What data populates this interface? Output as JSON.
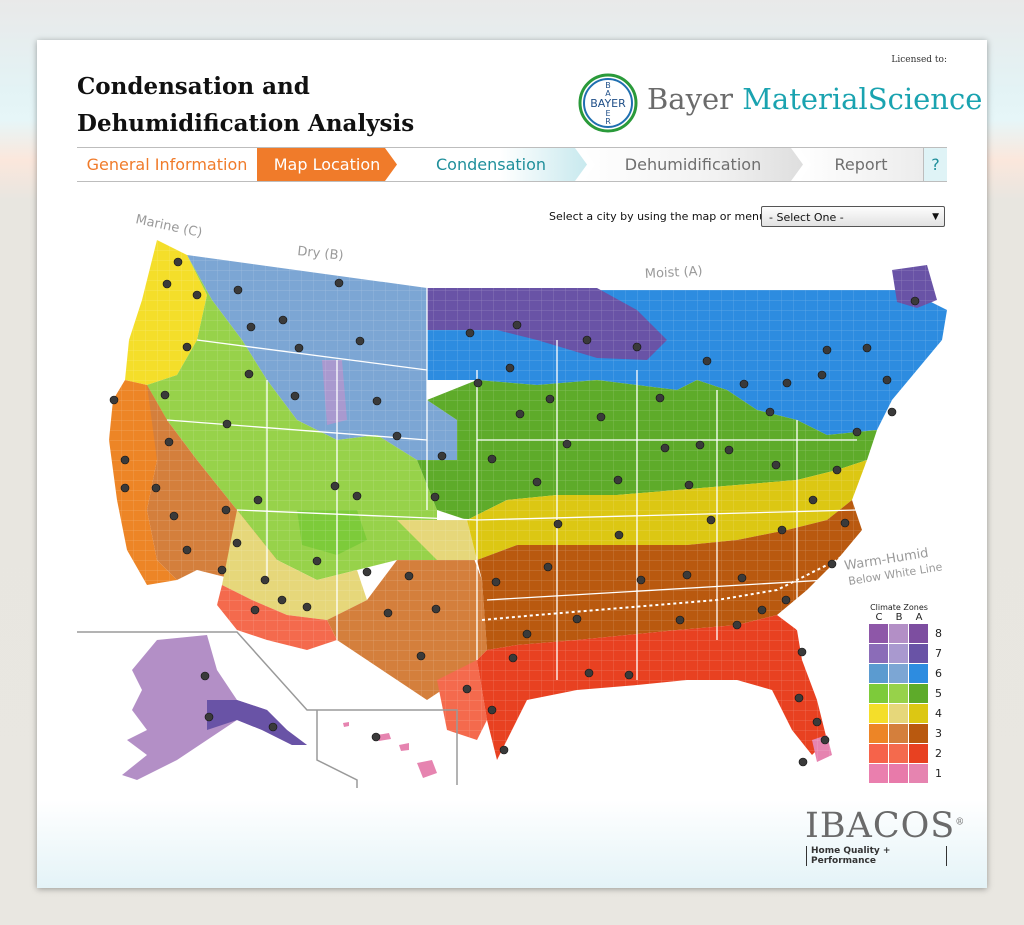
{
  "header": {
    "title": "Condensation and Dehumidification Analysis",
    "licensed_label": "Licensed to:",
    "brand_word1": "Bayer",
    "brand_word2": "MaterialScience",
    "cross_letters": "BAYER"
  },
  "tabs": [
    {
      "label": "General Information",
      "state": "visited"
    },
    {
      "label": "Map Location",
      "state": "active"
    },
    {
      "label": "Condensation",
      "state": "upcoming"
    },
    {
      "label": "Dehumidification",
      "state": "upcoming"
    },
    {
      "label": "Report",
      "state": "upcoming"
    },
    {
      "label": "?",
      "state": "help"
    }
  ],
  "city_select": {
    "label": "Select a city by using the map or menu:",
    "value": "- Select One -"
  },
  "map": {
    "region_labels": {
      "marine": "Marine (C)",
      "dry": "Dry (B)",
      "moist": "Moist (A)",
      "warm_humid_1": "Warm-Humid",
      "warm_humid_2": "Below White Line"
    }
  },
  "legend": {
    "title": "Climate Zones",
    "columns": [
      "C",
      "B",
      "A"
    ],
    "rows": [
      {
        "zone": "8",
        "colors": [
          "#8e57a8",
          "#b38fc6",
          "#7d4ea0"
        ]
      },
      {
        "zone": "7",
        "colors": [
          "#8b6cb8",
          "#a999cf",
          "#6953a6"
        ]
      },
      {
        "zone": "6",
        "colors": [
          "#5b9bd0",
          "#7ca6d4",
          "#2d8ce0"
        ]
      },
      {
        "zone": "5",
        "colors": [
          "#7dcb3a",
          "#97d24a",
          "#5eab2a"
        ]
      },
      {
        "zone": "4",
        "colors": [
          "#f4de2a",
          "#e6d77a",
          "#dcc713"
        ]
      },
      {
        "zone": "3",
        "colors": [
          "#ed8526",
          "#d47f3c",
          "#b9590f"
        ]
      },
      {
        "zone": "2",
        "colors": [
          "#f6634a",
          "#f46a4d",
          "#e84121"
        ]
      },
      {
        "zone": "1",
        "colors": [
          "#ea7fae",
          "#e87aaa",
          "#e684b0"
        ]
      }
    ]
  },
  "footer": {
    "company": "IBACOS",
    "registered": "®",
    "tagline": "Home Quality + Performance"
  },
  "colors": {
    "accent_orange": "#f07b2a",
    "accent_teal": "#1aa3b0"
  }
}
